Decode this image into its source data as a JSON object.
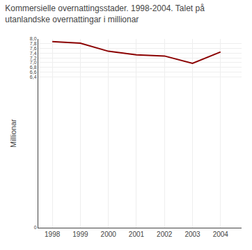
{
  "chart_data": {
    "type": "line",
    "title": "Kommersielle overnattingsstader. 1998-2004. Talet på\nutanlandske overnattingar i millionar",
    "ylabel": "Millionar",
    "x": [
      1998,
      1999,
      2000,
      2001,
      2002,
      2003,
      2004
    ],
    "values": [
      7.89,
      7.82,
      7.48,
      7.33,
      7.28,
      6.97,
      7.45
    ],
    "color": "#8B0000",
    "xlim": [
      1997.5,
      2004.75
    ],
    "xticks": [
      1998,
      1999,
      2000,
      2001,
      2002,
      2003,
      2004
    ],
    "ylim": [
      0,
      8.0
    ],
    "yticks": [
      0,
      {
        "value": 6.4,
        "label": "6,4"
      },
      {
        "value": 6.6,
        "label": "6,6"
      },
      {
        "value": 6.8,
        "label": "6,8"
      },
      {
        "value": 7.0,
        "label": "7,0"
      },
      {
        "value": 7.2,
        "label": "7,2"
      },
      {
        "value": 7.4,
        "label": "7,4"
      },
      {
        "value": 7.6,
        "label": "7,6"
      },
      {
        "value": 7.8,
        "label": "7,8"
      },
      {
        "value": 8.0,
        "label": "8,0"
      }
    ],
    "grid": true
  }
}
